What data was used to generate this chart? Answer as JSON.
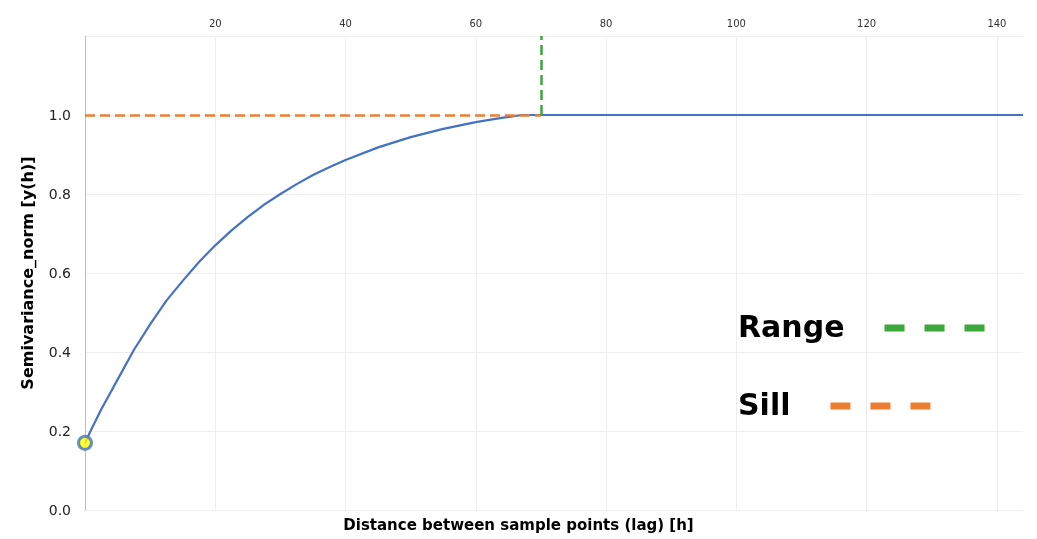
{
  "chart_data": {
    "type": "line",
    "xlabel": "Distance between sample points (lag) [h]",
    "ylabel": "Semivariance_norm [y(h)]",
    "x": [
      0,
      1,
      2.5,
      4,
      5,
      7.5,
      10,
      12.5,
      15,
      17.5,
      20,
      22.5,
      25,
      27.5,
      30,
      32.5,
      35,
      37.5,
      40,
      45,
      50,
      55,
      60,
      63,
      67,
      70,
      100,
      144
    ],
    "series": [
      {
        "color": "#4472c4",
        "values": [
          0.17,
          0.205,
          0.255,
          0.3,
          0.33,
          0.405,
          0.47,
          0.53,
          0.58,
          0.628,
          0.67,
          0.708,
          0.742,
          0.773,
          0.8,
          0.825,
          0.848,
          0.868,
          0.886,
          0.918,
          0.944,
          0.965,
          0.982,
          0.99,
          1.0,
          1.0,
          1.0,
          1.0
        ],
        "marker": "none"
      },
      {
        "type": "scatter",
        "color": "#ffff00",
        "x": [
          0
        ],
        "values": [
          0.17
        ],
        "marker": "circle"
      }
    ],
    "xlim": [
      0,
      144
    ],
    "xticks": [
      20,
      40,
      60,
      80,
      100,
      120,
      140
    ],
    "ylim": [
      0,
      1.2
    ],
    "yticks": [
      {
        "value": 0,
        "label": "0.0"
      },
      0.2,
      0.4,
      0.6,
      0.8,
      {
        "value": 1,
        "label": "1.0"
      },
      {
        "value": 1.2,
        "label": null
      }
    ],
    "ref_lines": [
      {
        "axis": "x",
        "value": 70,
        "label": "Range",
        "color": "#3aa83a",
        "line_style": "dashed"
      },
      {
        "axis": "y",
        "value": 1.0,
        "label": "Sill",
        "color": "#ed7d31",
        "line_style": "dashed"
      }
    ],
    "grid": true,
    "legend": "right",
    "line_style": "solid"
  }
}
